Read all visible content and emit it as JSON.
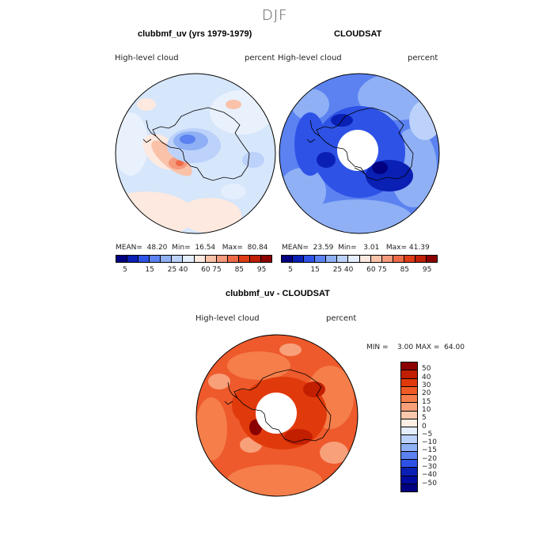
{
  "header": {
    "season": "DJF"
  },
  "panel_model": {
    "title": "clubbmf_uv (yrs 1979-1979)",
    "variable": "High-level cloud",
    "units": "percent",
    "stats": {
      "mean_label": "MEAN=",
      "mean": "48.20",
      "min_label": "Min=",
      "min": "16.54",
      "max_label": "Max=",
      "max": "80.84"
    }
  },
  "panel_obs": {
    "title": "CLOUDSAT",
    "variable": "High-level cloud",
    "units": "percent",
    "stats": {
      "mean_label": "MEAN=",
      "mean": "23.59",
      "min_label": "Min=",
      "min": "3.01",
      "max_label": "Max=",
      "max": "41.39"
    }
  },
  "colorbar_top": {
    "ticks": [
      "5",
      "15",
      "25",
      "40",
      "60",
      "75",
      "85",
      "95"
    ],
    "colors": [
      "#000080",
      "#0a1fb4",
      "#2e52e6",
      "#5b82f0",
      "#8fb0f5",
      "#bcd2fa",
      "#e4eefc",
      "#fde9df",
      "#f9c2a9",
      "#f59a7c",
      "#ee6a47",
      "#de3c17",
      "#bf1f05",
      "#8b0000"
    ]
  },
  "panel_diff": {
    "title": "clubbmf_uv - CLOUDSAT",
    "variable": "High-level cloud",
    "units": "percent",
    "stats": {
      "min_label": "MIN =",
      "min": "3.00",
      "max_label": "MAX =",
      "max": "64.00"
    }
  },
  "colorbar_diff": {
    "ticks": [
      "50",
      "40",
      "30",
      "20",
      "15",
      "10",
      "5",
      "0",
      "−5",
      "−10",
      "−15",
      "−20",
      "−30",
      "−40",
      "−50"
    ],
    "colors": [
      "#8b0000",
      "#c21e00",
      "#e03a0c",
      "#f05a24",
      "#f57e4a",
      "#f7a07a",
      "#fbc8ad",
      "#fdeee3",
      "#e4eefc",
      "#bcd2fa",
      "#8fb0f5",
      "#5b82f0",
      "#2e52e6",
      "#0a1fb4",
      "#000ca0",
      "#000080"
    ]
  },
  "colors": {
    "model_base": "#d6e6fb",
    "obs_base": "#5f8ef0",
    "diff_base": "#ee5a2c"
  }
}
